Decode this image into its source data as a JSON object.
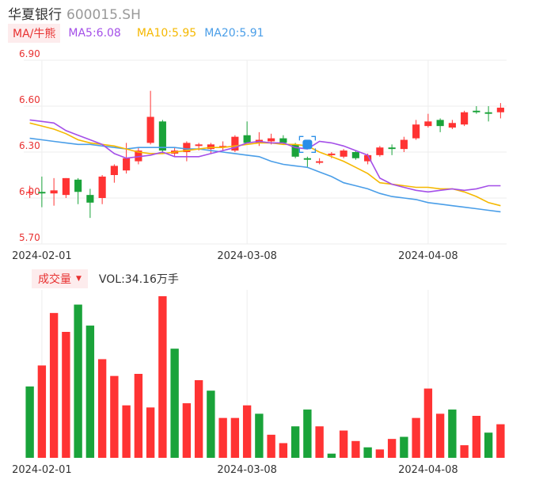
{
  "header": {
    "stock_name": "华夏银行",
    "stock_code": "600015.SH"
  },
  "legend": {
    "ma_toggle": "MA/牛熊",
    "ma5": "MA5:6.08",
    "ma10": "MA10:5.95",
    "ma20": "MA20:5.91"
  },
  "volume_legend": {
    "toggle": "成交量",
    "value": "VOL:34.16万手"
  },
  "colors": {
    "up": "#ff3333",
    "down": "#1aa33a",
    "ma5": "#a44fe8",
    "ma10": "#f5b800",
    "ma20": "#4a9ee8",
    "grid": "#eeeeee",
    "axis_text": "#333333",
    "price_label": "#e83131"
  },
  "chart_data": [
    {
      "type": "candlestick",
      "y_ticks": [
        "6.90",
        "6.60",
        "6.30",
        "6.00",
        "5.70"
      ],
      "ylim": [
        5.7,
        6.9
      ],
      "x_tick_labels": [
        "2024-02-01",
        "2024-03-08",
        "2024-04-08"
      ],
      "x_tick_index": [
        1,
        18,
        33
      ],
      "candles": [
        {
          "o": 6.04,
          "h": 6.08,
          "l": 6.0,
          "c": 6.04
        },
        {
          "o": 6.04,
          "h": 6.14,
          "l": 5.94,
          "c": 6.03
        },
        {
          "o": 6.03,
          "h": 6.13,
          "l": 5.95,
          "c": 6.05
        },
        {
          "o": 6.02,
          "h": 6.13,
          "l": 6.0,
          "c": 6.13
        },
        {
          "o": 6.12,
          "h": 6.13,
          "l": 5.96,
          "c": 6.04
        },
        {
          "o": 6.02,
          "h": 6.06,
          "l": 5.87,
          "c": 5.97
        },
        {
          "o": 6.0,
          "h": 6.15,
          "l": 5.96,
          "c": 6.14
        },
        {
          "o": 6.15,
          "h": 6.22,
          "l": 6.1,
          "c": 6.21
        },
        {
          "o": 6.18,
          "h": 6.36,
          "l": 6.16,
          "c": 6.26
        },
        {
          "o": 6.24,
          "h": 6.33,
          "l": 6.22,
          "c": 6.31
        },
        {
          "o": 6.36,
          "h": 6.7,
          "l": 6.35,
          "c": 6.53
        },
        {
          "o": 6.5,
          "h": 6.51,
          "l": 6.29,
          "c": 6.31
        },
        {
          "o": 6.29,
          "h": 6.33,
          "l": 6.27,
          "c": 6.31
        },
        {
          "o": 6.3,
          "h": 6.37,
          "l": 6.24,
          "c": 6.36
        },
        {
          "o": 6.34,
          "h": 6.36,
          "l": 6.31,
          "c": 6.35
        },
        {
          "o": 6.32,
          "h": 6.36,
          "l": 6.29,
          "c": 6.35
        },
        {
          "o": 6.34,
          "h": 6.37,
          "l": 6.31,
          "c": 6.34
        },
        {
          "o": 6.31,
          "h": 6.41,
          "l": 6.3,
          "c": 6.4
        },
        {
          "o": 6.41,
          "h": 6.5,
          "l": 6.36,
          "c": 6.36
        },
        {
          "o": 6.36,
          "h": 6.43,
          "l": 6.34,
          "c": 6.38
        },
        {
          "o": 6.37,
          "h": 6.42,
          "l": 6.35,
          "c": 6.39
        },
        {
          "o": 6.39,
          "h": 6.41,
          "l": 6.35,
          "c": 6.36
        },
        {
          "o": 6.35,
          "h": 6.36,
          "l": 6.26,
          "c": 6.27
        },
        {
          "o": 6.26,
          "h": 6.27,
          "l": 6.2,
          "c": 6.25
        },
        {
          "o": 6.23,
          "h": 6.26,
          "l": 6.22,
          "c": 6.24
        },
        {
          "o": 6.28,
          "h": 6.3,
          "l": 6.26,
          "c": 6.29
        },
        {
          "o": 6.27,
          "h": 6.32,
          "l": 6.26,
          "c": 6.31
        },
        {
          "o": 6.3,
          "h": 6.31,
          "l": 6.25,
          "c": 6.26
        },
        {
          "o": 6.24,
          "h": 6.29,
          "l": 6.22,
          "c": 6.28
        },
        {
          "o": 6.28,
          "h": 6.34,
          "l": 6.27,
          "c": 6.33
        },
        {
          "o": 6.33,
          "h": 6.35,
          "l": 6.28,
          "c": 6.32
        },
        {
          "o": 6.32,
          "h": 6.4,
          "l": 6.3,
          "c": 6.38
        },
        {
          "o": 6.39,
          "h": 6.51,
          "l": 6.38,
          "c": 6.48
        },
        {
          "o": 6.47,
          "h": 6.55,
          "l": 6.46,
          "c": 6.5
        },
        {
          "o": 6.51,
          "h": 6.52,
          "l": 6.43,
          "c": 6.47
        },
        {
          "o": 6.46,
          "h": 6.51,
          "l": 6.45,
          "c": 6.49
        },
        {
          "o": 6.48,
          "h": 6.57,
          "l": 6.47,
          "c": 6.56
        },
        {
          "o": 6.57,
          "h": 6.6,
          "l": 6.55,
          "c": 6.56
        },
        {
          "o": 6.56,
          "h": 6.6,
          "l": 6.5,
          "c": 6.55
        },
        {
          "o": 6.56,
          "h": 6.62,
          "l": 6.52,
          "c": 6.59
        }
      ],
      "ma5": [
        6.51,
        6.5,
        6.49,
        6.44,
        6.41,
        6.38,
        6.35,
        6.29,
        6.26,
        6.27,
        6.28,
        6.3,
        6.27,
        6.27,
        6.27,
        6.29,
        6.31,
        6.33,
        6.36,
        6.37,
        6.36,
        6.36,
        6.33,
        6.32,
        6.37,
        6.36,
        6.34,
        6.31,
        6.28,
        6.13,
        6.09,
        6.07,
        6.05,
        6.04,
        6.05,
        6.06,
        6.05,
        6.06,
        6.08,
        6.08
      ],
      "ma10": [
        6.49,
        6.47,
        6.45,
        6.42,
        6.38,
        6.36,
        6.35,
        6.34,
        6.32,
        6.3,
        6.29,
        6.29,
        6.3,
        6.31,
        6.32,
        6.33,
        6.33,
        6.34,
        6.35,
        6.36,
        6.36,
        6.35,
        6.35,
        6.34,
        6.3,
        6.27,
        6.24,
        6.2,
        6.16,
        6.1,
        6.09,
        6.08,
        6.07,
        6.07,
        6.06,
        6.06,
        6.04,
        6.01,
        5.97,
        5.95
      ],
      "ma20": [
        6.39,
        6.38,
        6.37,
        6.36,
        6.35,
        6.35,
        6.34,
        6.33,
        6.32,
        6.33,
        6.33,
        6.33,
        6.33,
        6.32,
        6.32,
        6.31,
        6.3,
        6.29,
        6.28,
        6.27,
        6.24,
        6.22,
        6.21,
        6.2,
        6.17,
        6.14,
        6.1,
        6.08,
        6.06,
        6.03,
        6.01,
        6.0,
        5.99,
        5.97,
        5.96,
        5.95,
        5.94,
        5.93,
        5.92,
        5.91
      ]
    },
    {
      "type": "bar",
      "title": "VOL:34.16万手",
      "x_tick_labels": [
        "2024-02-01",
        "2024-03-08",
        "2024-04-08"
      ],
      "x_tick_index": [
        1,
        18,
        33
      ],
      "ylim": [
        0,
        80
      ],
      "values": [
        34,
        44,
        69,
        60,
        73,
        63,
        47,
        39,
        25,
        40,
        24,
        77,
        52,
        26,
        37,
        32,
        19,
        19,
        25,
        21,
        11,
        7,
        15,
        23,
        15,
        2,
        13,
        8,
        5,
        4,
        9,
        10,
        19,
        33,
        21,
        23,
        6,
        20,
        12,
        16
      ],
      "up": [
        false,
        true,
        true,
        true,
        false,
        false,
        true,
        true,
        true,
        true,
        true,
        true,
        false,
        true,
        true,
        false,
        true,
        true,
        true,
        false,
        true,
        true,
        false,
        false,
        true,
        false,
        true,
        true,
        false,
        true,
        true,
        false,
        true,
        true,
        true,
        false,
        true,
        true,
        false,
        true
      ]
    }
  ]
}
